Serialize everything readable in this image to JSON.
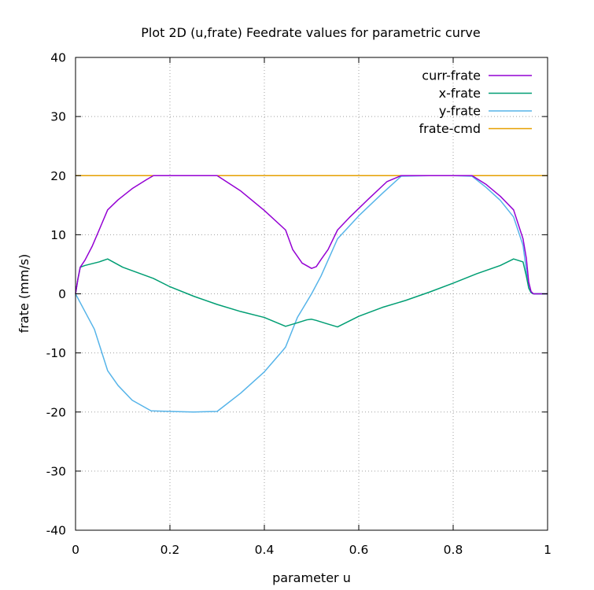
{
  "chart_data": {
    "type": "line",
    "title": "Plot 2D (u,frate) Feedrate values for parametric curve",
    "xlabel": "parameter u",
    "ylabel": "frate (mm/s)",
    "xlim": [
      0,
      1
    ],
    "ylim": [
      -40,
      40
    ],
    "xticks": [
      "0",
      "0.2",
      "0.4",
      "0.6",
      "0.8",
      "1"
    ],
    "xtick_values": [
      0,
      0.2,
      0.4,
      0.6,
      0.8,
      1
    ],
    "yticks": [
      "-40",
      "-30",
      "-20",
      "-10",
      "0",
      "10",
      "20",
      "30",
      "40"
    ],
    "ytick_values": [
      -40,
      -30,
      -20,
      -10,
      0,
      10,
      20,
      30,
      40
    ],
    "grid": true,
    "legend_position": "top-right",
    "series": [
      {
        "name": "curr-frate",
        "color": "#9400d3",
        "x": [
          0,
          0.005,
          0.01,
          0.02,
          0.035,
          0.05,
          0.068,
          0.09,
          0.12,
          0.15,
          0.165,
          0.2,
          0.25,
          0.3,
          0.35,
          0.4,
          0.445,
          0.46,
          0.48,
          0.5,
          0.51,
          0.52,
          0.535,
          0.555,
          0.58,
          0.62,
          0.66,
          0.69,
          0.7,
          0.75,
          0.8,
          0.84,
          0.87,
          0.9,
          0.928,
          0.948,
          0.955,
          0.96,
          0.965,
          0.97,
          0.98,
          1
        ],
        "y": [
          0,
          2.5,
          4.5,
          5.7,
          8,
          10.8,
          14.2,
          15.9,
          17.8,
          19.3,
          20,
          20,
          20,
          20,
          17.4,
          14.1,
          10.8,
          7.5,
          5.2,
          4.3,
          4.6,
          5.8,
          7.5,
          10.8,
          12.9,
          16.0,
          19.0,
          20,
          20,
          20,
          20,
          20,
          18.5,
          16.5,
          14.2,
          9.3,
          6.0,
          2.0,
          0.4,
          0,
          0,
          0
        ]
      },
      {
        "name": "x-frate",
        "color": "#009e73",
        "x": [
          0,
          0.005,
          0.01,
          0.02,
          0.035,
          0.05,
          0.068,
          0.1,
          0.165,
          0.2,
          0.25,
          0.3,
          0.35,
          0.4,
          0.445,
          0.47,
          0.49,
          0.5,
          0.51,
          0.53,
          0.555,
          0.6,
          0.65,
          0.7,
          0.75,
          0.8,
          0.85,
          0.9,
          0.928,
          0.948,
          0.955,
          0.96,
          0.965,
          0.97,
          0.98,
          1
        ],
        "y": [
          0,
          2.5,
          4.5,
          4.8,
          5.1,
          5.4,
          5.9,
          4.5,
          2.6,
          1.2,
          -0.4,
          -1.8,
          -3.0,
          -4.0,
          -5.5,
          -4.9,
          -4.4,
          -4.3,
          -4.5,
          -5.0,
          -5.6,
          -3.8,
          -2.3,
          -1.1,
          0.3,
          1.8,
          3.4,
          4.8,
          5.9,
          5.4,
          3.0,
          1.0,
          0.2,
          0,
          0,
          0
        ]
      },
      {
        "name": "y-frate",
        "color": "#56b4e9",
        "x": [
          0,
          0.02,
          0.04,
          0.068,
          0.09,
          0.12,
          0.16,
          0.2,
          0.25,
          0.3,
          0.35,
          0.4,
          0.44,
          0.445,
          0.47,
          0.5,
          0.52,
          0.555,
          0.6,
          0.65,
          0.69,
          0.75,
          0.8,
          0.84,
          0.87,
          0.9,
          0.928,
          0.948,
          0.955,
          0.96,
          0.965,
          0.97,
          0.98,
          1
        ],
        "y": [
          0,
          -3,
          -6,
          -13,
          -15.5,
          -18,
          -19.8,
          -19.9,
          -20,
          -19.9,
          -16.8,
          -13.2,
          -9.5,
          -9,
          -4,
          0,
          3,
          9.3,
          13.2,
          17.0,
          19.9,
          20,
          20,
          19.9,
          18.0,
          15.8,
          13.0,
          8.2,
          4.0,
          1.0,
          0.2,
          0,
          0,
          0
        ]
      },
      {
        "name": "frate-cmd",
        "color": "#e69f00",
        "x": [
          0,
          1
        ],
        "y": [
          20,
          20
        ]
      }
    ]
  }
}
